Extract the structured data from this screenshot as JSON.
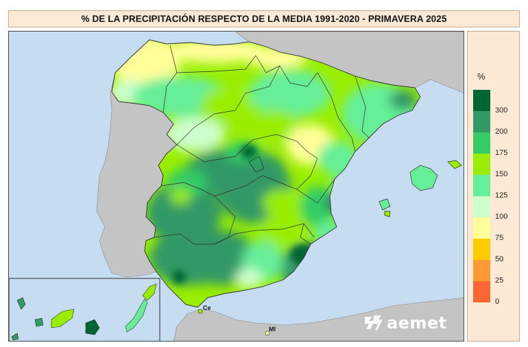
{
  "title": "% DE LA PRECIPITACIÓN RESPECTO DE LA MEDIA 1991-2020 - PRIMAVERA 2025",
  "legend": {
    "unit": "%",
    "colors": [
      "#006633",
      "#339966",
      "#33cc66",
      "#99ee00",
      "#66ee99",
      "#ccffcc",
      "#ffff99",
      "#ffcc00",
      "#ff9933",
      "#ff6633"
    ],
    "labels": [
      "300",
      "200",
      "175",
      "150",
      "125",
      "100",
      "75",
      "50",
      "25",
      "0"
    ]
  },
  "cities": {
    "ceuta": "Ce",
    "melilla": "Ml"
  },
  "logo": {
    "text": "aemet",
    "icon": "aemet-logo-icon"
  },
  "map_colors": {
    "sea": "#c6dcf0",
    "land_foreign": "#c4c4c4",
    "border": "#2a2a2a"
  }
}
